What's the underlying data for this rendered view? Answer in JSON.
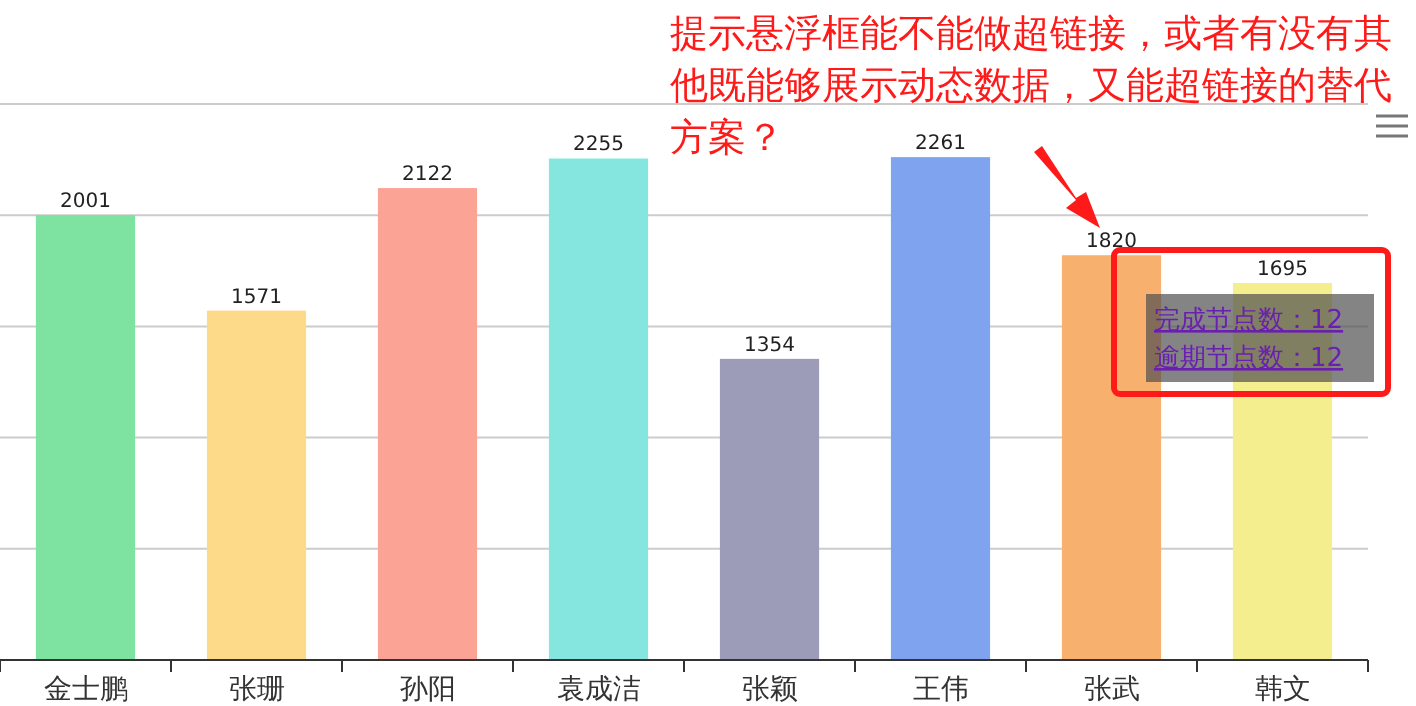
{
  "chart_data": {
    "type": "bar",
    "categories": [
      "金士鹏",
      "张珊",
      "孙阳",
      "袁成洁",
      "张颖",
      "王伟",
      "张武",
      "韩文"
    ],
    "values": [
      2001,
      1571,
      2122,
      2255,
      1354,
      2261,
      1820,
      1695
    ],
    "colors": [
      "#7ee3a0",
      "#fdd98a",
      "#fba496",
      "#84e6de",
      "#9c9cb8",
      "#7fa3ef",
      "#f8b06e",
      "#f5ee8e"
    ],
    "ylim": [
      0,
      2500
    ],
    "yticks": [
      {
        "value": 0,
        "label": null
      },
      {
        "value": 500,
        "label": null
      },
      {
        "value": 1000,
        "label": null
      },
      {
        "value": 1500,
        "label": null
      },
      {
        "value": 2000,
        "label": null
      },
      {
        "value": 2500,
        "label": null
      }
    ],
    "tick_labels": "x",
    "grid": "y",
    "data_labels": true,
    "annotations": [
      "提示悬浮框能不能做超链接，或者有没有其他既能够展示动态数据，又能超链接的替代方案？",
      "完成节点数：12",
      "逾期节点数：12"
    ]
  }
}
